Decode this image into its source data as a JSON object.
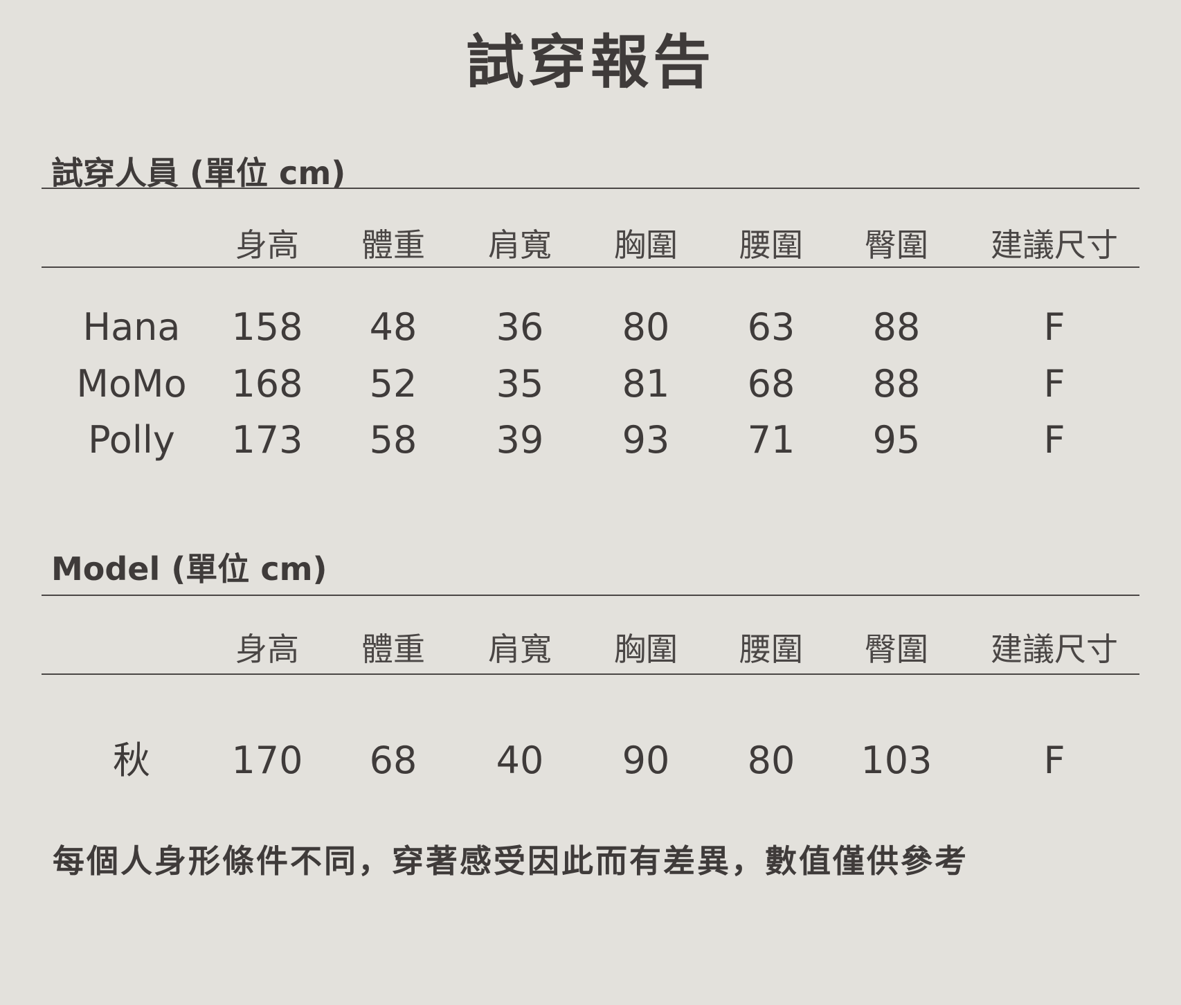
{
  "title": "試穿報告",
  "columns": [
    "身高",
    "體重",
    "肩寬",
    "胸圍",
    "腰圍",
    "臀圍",
    "建議尺寸"
  ],
  "testers": {
    "heading": "試穿人員 (單位 cm)",
    "rows": [
      {
        "name": "Hana",
        "values": [
          "158",
          "48",
          "36",
          "80",
          "63",
          "88",
          "F"
        ]
      },
      {
        "name": "MoMo",
        "values": [
          "168",
          "52",
          "35",
          "81",
          "68",
          "88",
          "F"
        ]
      },
      {
        "name": "Polly",
        "values": [
          "173",
          "58",
          "39",
          "93",
          "71",
          "95",
          "F"
        ]
      }
    ]
  },
  "model": {
    "heading": "Model (單位 cm)",
    "rows": [
      {
        "name": "秋",
        "values": [
          "170",
          "68",
          "40",
          "90",
          "80",
          "103",
          "F"
        ]
      }
    ]
  },
  "note": "每個人身形條件不同，穿著感受因此而有差異，數值僅供參考"
}
